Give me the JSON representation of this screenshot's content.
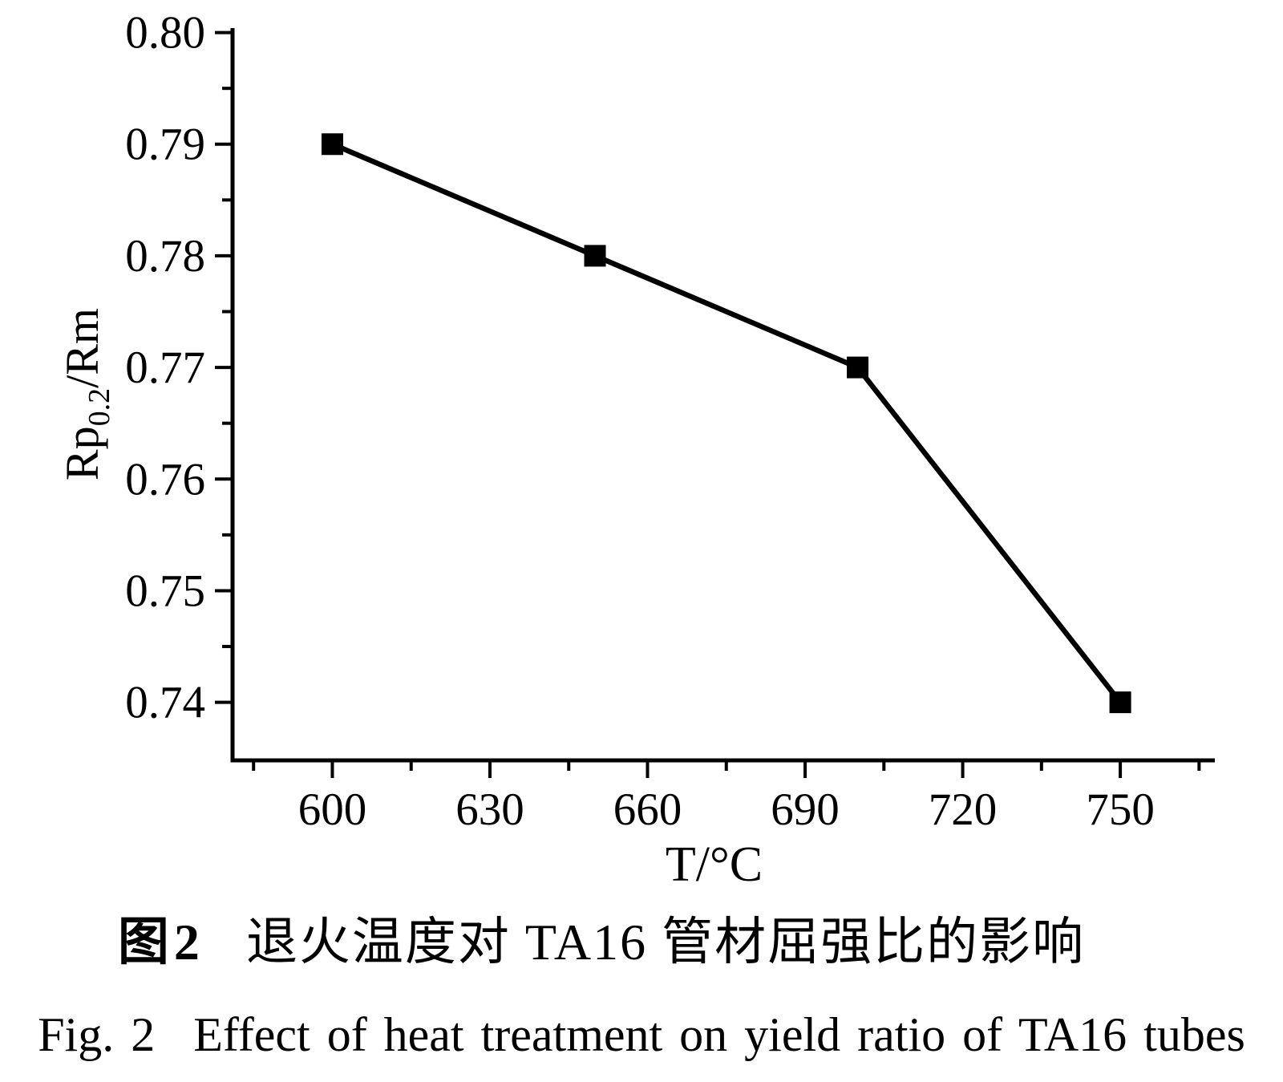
{
  "figure": {
    "caption_zh": {
      "label": "图2",
      "text": "退火温度对 TA16 管材屈强比的影响"
    },
    "caption_en": {
      "label": "Fig. 2",
      "text": "Effect of heat treatment on yield ratio of TA16 tubes"
    }
  },
  "chart_data": {
    "type": "line",
    "xlabel": "T/°C",
    "ylabel": "Rp0.2/Rm",
    "ylabel_parts": [
      {
        "text": "Rp",
        "sub": false
      },
      {
        "text": "0.2",
        "sub": true
      },
      {
        "text": "/Rm",
        "sub": false
      }
    ],
    "series": [
      {
        "name": "yield-ratio",
        "x": [
          600,
          650,
          700,
          750
        ],
        "y": [
          0.79,
          0.78,
          0.77,
          0.74
        ]
      }
    ],
    "xlim": [
      581,
      768
    ],
    "ylim": [
      0.7348,
      0.8004
    ],
    "x_ticks_major": {
      "values": [
        600,
        630,
        660,
        690,
        720,
        750
      ],
      "labels": [
        "600",
        "630",
        "660",
        "690",
        "720",
        "750"
      ]
    },
    "x_ticks_minor": [
      585,
      615,
      645,
      675,
      705,
      735,
      765
    ],
    "y_ticks_major": {
      "values": [
        0.74,
        0.75,
        0.76,
        0.77,
        0.78,
        0.79,
        0.8
      ],
      "labels": [
        "0.74",
        "0.75",
        "0.76",
        "0.77",
        "0.78",
        "0.79",
        "0.80"
      ]
    },
    "y_ticks_minor": [
      0.745,
      0.755,
      0.765,
      0.775,
      0.785,
      0.795
    ],
    "grid": false,
    "legend": false,
    "marker": "square",
    "marker_size": 27,
    "line_width": 6.5,
    "line_color": "#000000",
    "marker_color": "#000000",
    "axis_color": "#000000",
    "text_color": "#000000",
    "background": "#ffffff"
  }
}
